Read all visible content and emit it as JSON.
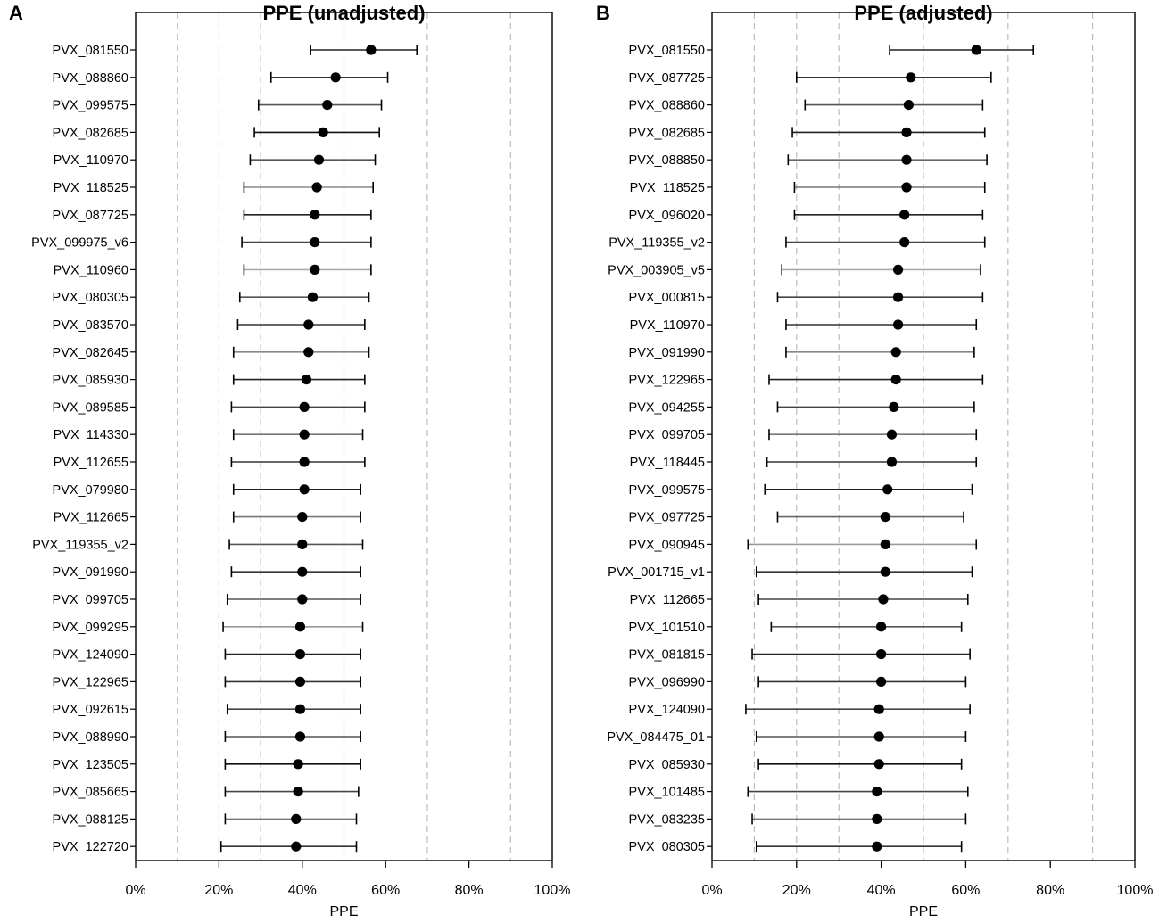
{
  "chart_data": [
    {
      "type": "forest",
      "panel": "A",
      "title": "PPE (unadjusted)",
      "xlabel": "PPE",
      "xlim": [
        0,
        100
      ],
      "xticks": [
        "0%",
        "20%",
        "40%",
        "60%",
        "80%",
        "100%"
      ],
      "grid_x": [
        10,
        20,
        30,
        50,
        70,
        90
      ],
      "rows": [
        {
          "label": "PVX_081550",
          "est": 56.5,
          "lo": 42.0,
          "hi": 67.5,
          "shade": "#222222"
        },
        {
          "label": "PVX_088860",
          "est": 48.0,
          "lo": 32.5,
          "hi": 60.5,
          "shade": "#333333"
        },
        {
          "label": "PVX_099575",
          "est": 46.0,
          "lo": 29.5,
          "hi": 59.0,
          "shade": "#555555"
        },
        {
          "label": "PVX_082685",
          "est": 45.0,
          "lo": 28.5,
          "hi": 58.5,
          "shade": "#111111"
        },
        {
          "label": "PVX_110970",
          "est": 44.0,
          "lo": 27.5,
          "hi": 57.5,
          "shade": "#555555"
        },
        {
          "label": "PVX_118525",
          "est": 43.5,
          "lo": 26.0,
          "hi": 57.0,
          "shade": "#888888"
        },
        {
          "label": "PVX_087725",
          "est": 43.0,
          "lo": 26.0,
          "hi": 56.5,
          "shade": "#222222"
        },
        {
          "label": "PVX_099975_v6",
          "est": 43.0,
          "lo": 25.5,
          "hi": 56.5,
          "shade": "#444444"
        },
        {
          "label": "PVX_110960",
          "est": 43.0,
          "lo": 26.0,
          "hi": 56.5,
          "shade": "#aaaaaa"
        },
        {
          "label": "PVX_080305",
          "est": 42.5,
          "lo": 25.0,
          "hi": 56.0,
          "shade": "#555555"
        },
        {
          "label": "PVX_083570",
          "est": 41.5,
          "lo": 24.5,
          "hi": 55.0,
          "shade": "#333333"
        },
        {
          "label": "PVX_082645",
          "est": 41.5,
          "lo": 23.5,
          "hi": 56.0,
          "shade": "#888888"
        },
        {
          "label": "PVX_085930",
          "est": 41.0,
          "lo": 23.5,
          "hi": 55.0,
          "shade": "#222222"
        },
        {
          "label": "PVX_089585",
          "est": 40.5,
          "lo": 23.0,
          "hi": 55.0,
          "shade": "#444444"
        },
        {
          "label": "PVX_114330",
          "est": 40.5,
          "lo": 23.5,
          "hi": 54.5,
          "shade": "#777777"
        },
        {
          "label": "PVX_112655",
          "est": 40.5,
          "lo": 23.0,
          "hi": 55.0,
          "shade": "#333333"
        },
        {
          "label": "PVX_079980",
          "est": 40.5,
          "lo": 23.5,
          "hi": 54.0,
          "shade": "#222222"
        },
        {
          "label": "PVX_112665",
          "est": 40.0,
          "lo": 23.5,
          "hi": 54.0,
          "shade": "#777777"
        },
        {
          "label": "PVX_119355_v2",
          "est": 40.0,
          "lo": 22.5,
          "hi": 54.5,
          "shade": "#555555"
        },
        {
          "label": "PVX_091990",
          "est": 40.0,
          "lo": 23.0,
          "hi": 54.0,
          "shade": "#333333"
        },
        {
          "label": "PVX_099705",
          "est": 40.0,
          "lo": 22.0,
          "hi": 54.0,
          "shade": "#555555"
        },
        {
          "label": "PVX_099295",
          "est": 39.5,
          "lo": 21.0,
          "hi": 54.5,
          "shade": "#999999"
        },
        {
          "label": "PVX_124090",
          "est": 39.5,
          "lo": 21.5,
          "hi": 54.0,
          "shade": "#222222"
        },
        {
          "label": "PVX_122965",
          "est": 39.5,
          "lo": 21.5,
          "hi": 54.0,
          "shade": "#333333"
        },
        {
          "label": "PVX_092615",
          "est": 39.5,
          "lo": 22.0,
          "hi": 54.0,
          "shade": "#444444"
        },
        {
          "label": "PVX_088990",
          "est": 39.5,
          "lo": 21.5,
          "hi": 54.0,
          "shade": "#555555"
        },
        {
          "label": "PVX_123505",
          "est": 39.0,
          "lo": 21.5,
          "hi": 54.0,
          "shade": "#111111"
        },
        {
          "label": "PVX_085665",
          "est": 39.0,
          "lo": 21.5,
          "hi": 53.5,
          "shade": "#444444"
        },
        {
          "label": "PVX_088125",
          "est": 38.5,
          "lo": 21.5,
          "hi": 53.0,
          "shade": "#777777"
        },
        {
          "label": "PVX_122720",
          "est": 38.5,
          "lo": 20.5,
          "hi": 53.0,
          "shade": "#333333"
        }
      ]
    },
    {
      "type": "forest",
      "panel": "B",
      "title": "PPE (adjusted)",
      "xlabel": "PPE",
      "xlim": [
        0,
        100
      ],
      "xticks": [
        "0%",
        "20%",
        "40%",
        "60%",
        "80%",
        "100%"
      ],
      "grid_x": [
        10,
        20,
        30,
        50,
        70,
        90
      ],
      "rows": [
        {
          "label": "PVX_081550",
          "est": 62.5,
          "lo": 42.0,
          "hi": 76.0,
          "shade": "#222222"
        },
        {
          "label": "PVX_087725",
          "est": 47.0,
          "lo": 20.0,
          "hi": 66.0,
          "shade": "#333333"
        },
        {
          "label": "PVX_088860",
          "est": 46.5,
          "lo": 22.0,
          "hi": 64.0,
          "shade": "#555555"
        },
        {
          "label": "PVX_082685",
          "est": 46.0,
          "lo": 19.0,
          "hi": 64.5,
          "shade": "#222222"
        },
        {
          "label": "PVX_088850",
          "est": 46.0,
          "lo": 18.0,
          "hi": 65.0,
          "shade": "#666666"
        },
        {
          "label": "PVX_118525",
          "est": 46.0,
          "lo": 19.5,
          "hi": 64.5,
          "shade": "#777777"
        },
        {
          "label": "PVX_096020",
          "est": 45.5,
          "lo": 19.5,
          "hi": 64.0,
          "shade": "#222222"
        },
        {
          "label": "PVX_119355_v2",
          "est": 45.5,
          "lo": 17.5,
          "hi": 64.5,
          "shade": "#444444"
        },
        {
          "label": "PVX_003905_v5",
          "est": 44.0,
          "lo": 16.5,
          "hi": 63.5,
          "shade": "#aaaaaa"
        },
        {
          "label": "PVX_000815",
          "est": 44.0,
          "lo": 15.5,
          "hi": 64.0,
          "shade": "#444444"
        },
        {
          "label": "PVX_110970",
          "est": 44.0,
          "lo": 17.5,
          "hi": 62.5,
          "shade": "#333333"
        },
        {
          "label": "PVX_091990",
          "est": 43.5,
          "lo": 17.5,
          "hi": 62.0,
          "shade": "#888888"
        },
        {
          "label": "PVX_122965",
          "est": 43.5,
          "lo": 13.5,
          "hi": 64.0,
          "shade": "#222222"
        },
        {
          "label": "PVX_094255",
          "est": 43.0,
          "lo": 15.5,
          "hi": 62.0,
          "shade": "#444444"
        },
        {
          "label": "PVX_099705",
          "est": 42.5,
          "lo": 13.5,
          "hi": 62.5,
          "shade": "#777777"
        },
        {
          "label": "PVX_118445",
          "est": 42.5,
          "lo": 13.0,
          "hi": 62.5,
          "shade": "#333333"
        },
        {
          "label": "PVX_099575",
          "est": 41.5,
          "lo": 12.5,
          "hi": 61.5,
          "shade": "#222222"
        },
        {
          "label": "PVX_097725",
          "est": 41.0,
          "lo": 15.5,
          "hi": 59.5,
          "shade": "#666666"
        },
        {
          "label": "PVX_090945",
          "est": 41.0,
          "lo": 8.5,
          "hi": 62.5,
          "shade": "#999999"
        },
        {
          "label": "PVX_001715_v1",
          "est": 41.0,
          "lo": 10.5,
          "hi": 61.5,
          "shade": "#333333"
        },
        {
          "label": "PVX_112665",
          "est": 40.5,
          "lo": 11.0,
          "hi": 60.5,
          "shade": "#444444"
        },
        {
          "label": "PVX_101510",
          "est": 40.0,
          "lo": 14.0,
          "hi": 59.0,
          "shade": "#555555"
        },
        {
          "label": "PVX_081815",
          "est": 40.0,
          "lo": 9.5,
          "hi": 61.0,
          "shade": "#222222"
        },
        {
          "label": "PVX_096990",
          "est": 40.0,
          "lo": 11.0,
          "hi": 60.0,
          "shade": "#333333"
        },
        {
          "label": "PVX_124090",
          "est": 39.5,
          "lo": 8.0,
          "hi": 61.0,
          "shade": "#444444"
        },
        {
          "label": "PVX_084475_01",
          "est": 39.5,
          "lo": 10.5,
          "hi": 60.0,
          "shade": "#555555"
        },
        {
          "label": "PVX_085930",
          "est": 39.5,
          "lo": 11.0,
          "hi": 59.0,
          "shade": "#111111"
        },
        {
          "label": "PVX_101485",
          "est": 39.0,
          "lo": 8.5,
          "hi": 60.5,
          "shade": "#444444"
        },
        {
          "label": "PVX_083235",
          "est": 39.0,
          "lo": 9.5,
          "hi": 60.0,
          "shade": "#777777"
        },
        {
          "label": "PVX_080305",
          "est": 39.0,
          "lo": 10.5,
          "hi": 59.0,
          "shade": "#333333"
        }
      ]
    }
  ]
}
